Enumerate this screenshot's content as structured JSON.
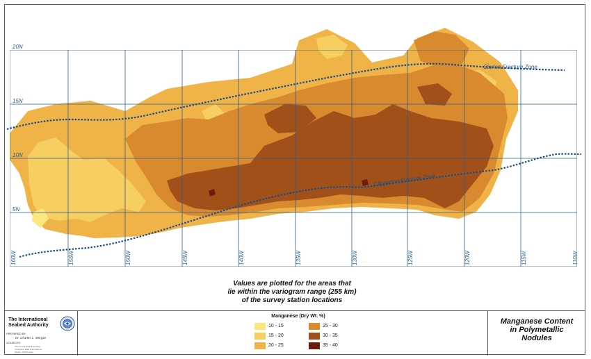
{
  "map": {
    "latitude_labels": [
      "20N",
      "15N",
      "10N",
      "5N"
    ],
    "longitude_labels": [
      "160W",
      "155W",
      "150W",
      "145W",
      "140W",
      "135W",
      "130W",
      "125W",
      "120W",
      "115W",
      "110W"
    ],
    "fracture_zones": [
      "Clarion Fracture Zone",
      "Clipperton Fracture Zone"
    ]
  },
  "note": {
    "lines": [
      "Values are plotted for the areas that",
      "lie within the variogram range (255 km)",
      "of the survey station locations"
    ]
  },
  "footer": {
    "org_name_lines": [
      "The International",
      "Seabed Authority"
    ],
    "prepared_by_label": "PREPARED BY",
    "prepared_by_name": "Dr. Charles L. Morgan",
    "sources_label": "SOURCES:",
    "sources": [
      "ISA Central Data Repository",
      "Contractor Data Submissions",
      "NOAA / NGDC data"
    ]
  },
  "legend": {
    "title": "Manganese (Dry Wt. %)",
    "classes": [
      {
        "label": "10 - 15",
        "color": "#fbe77d"
      },
      {
        "label": "15 - 20",
        "color": "#f7ce62"
      },
      {
        "label": "20 - 25",
        "color": "#efb347"
      },
      {
        "label": "25 - 30",
        "color": "#d98a2f"
      },
      {
        "label": "30 - 35",
        "color": "#a1501a"
      },
      {
        "label": "35 - 40",
        "color": "#6a1e0b"
      }
    ]
  },
  "map_title": {
    "lines": [
      "Manganese Content",
      "in Polymetallic",
      "Nodules"
    ]
  },
  "colors": {
    "grid": "#2a5f96",
    "fracture_line": "#1c4e85",
    "frame": "#5a5a5a"
  }
}
